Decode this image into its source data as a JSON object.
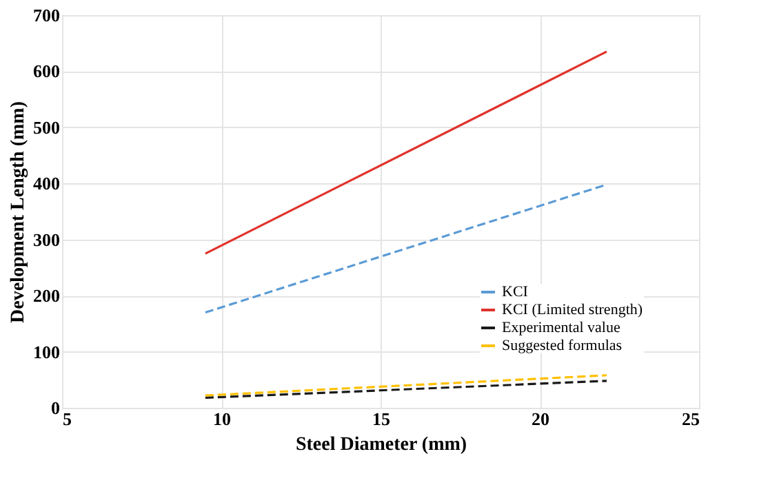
{
  "chart_data": {
    "type": "line",
    "xlabel": "Steel Diameter (mm)",
    "ylabel": "Development Length (mm)",
    "x": [
      9.5,
      22.1
    ],
    "series": [
      {
        "name": "KCI",
        "color": "#5b9bd5",
        "values": [
          170,
          398
        ],
        "line_style": "dashed"
      },
      {
        "name": "KCI (Limited strength)",
        "color": "#e0332c",
        "values": [
          275,
          635
        ],
        "line_style": "solid"
      },
      {
        "name": "Experimental value",
        "color": "#1a1a1a",
        "values": [
          18,
          48
        ],
        "line_style": "dashed"
      },
      {
        "name": "Suggested formulas",
        "color": "#ffc000",
        "values": [
          22,
          58
        ],
        "line_style": "dashed"
      }
    ],
    "xlim": [
      5,
      25
    ],
    "xticks": [
      5,
      10,
      15,
      20,
      25
    ],
    "ylim": [
      0,
      700
    ],
    "yticks": [
      0,
      100,
      200,
      300,
      400,
      500,
      600,
      700
    ],
    "grid": true,
    "legend": "bottom right",
    "marker": "none"
  }
}
